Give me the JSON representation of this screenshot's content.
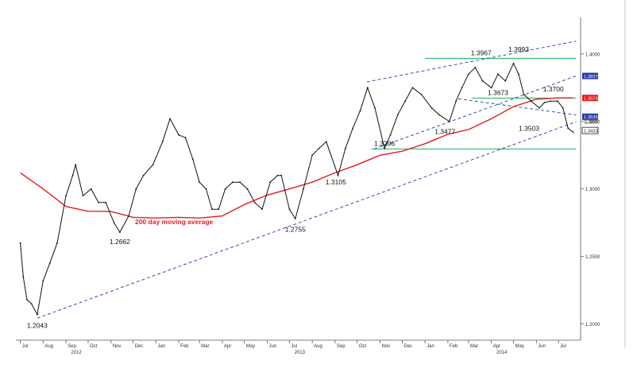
{
  "chart_data": {
    "type": "line",
    "series": [
      {
        "kind": "price",
        "x": [
          "2012-07-01",
          "2012-07-05",
          "2012-07-10",
          "2012-07-16",
          "2012-07-24",
          "2012-08-01",
          "2012-08-10",
          "2012-08-20",
          "2012-09-01",
          "2012-09-10",
          "2012-09-14",
          "2012-09-24",
          "2012-10-05",
          "2012-10-15",
          "2012-10-25",
          "2012-11-05",
          "2012-11-13",
          "2012-11-25",
          "2012-12-05",
          "2012-12-15",
          "2012-12-28",
          "2013-01-10",
          "2013-01-20",
          "2013-02-01",
          "2013-02-10",
          "2013-02-20",
          "2013-03-01",
          "2013-03-10",
          "2013-03-18",
          "2013-03-27",
          "2013-04-05",
          "2013-04-15",
          "2013-04-25",
          "2013-05-05",
          "2013-05-15",
          "2013-05-25",
          "2013-06-05",
          "2013-06-15",
          "2013-06-20",
          "2013-07-01",
          "2013-07-09",
          "2013-07-20",
          "2013-08-01",
          "2013-08-10",
          "2013-08-20",
          "2013-09-05",
          "2013-09-15",
          "2013-09-25",
          "2013-10-05",
          "2013-10-15",
          "2013-10-25",
          "2013-11-07",
          "2013-11-15",
          "2013-11-25",
          "2013-12-05",
          "2013-12-15",
          "2013-12-27",
          "2014-01-10",
          "2014-01-20",
          "2014-02-03",
          "2014-02-12",
          "2014-02-20",
          "2014-03-01",
          "2014-03-10",
          "2014-03-20",
          "2014-04-01",
          "2014-04-10",
          "2014-04-20",
          "2014-05-01",
          "2014-05-08",
          "2014-05-15",
          "2014-05-25",
          "2014-06-05",
          "2014-06-12",
          "2014-06-20",
          "2014-06-30",
          "2014-07-07",
          "2014-07-14",
          "2014-07-21"
        ],
        "y": [
          1.26,
          1.235,
          1.218,
          1.215,
          1.207,
          1.232,
          1.245,
          1.26,
          1.295,
          1.31,
          1.318,
          1.295,
          1.3,
          1.29,
          1.29,
          1.275,
          1.268,
          1.28,
          1.3,
          1.31,
          1.318,
          1.335,
          1.352,
          1.34,
          1.338,
          1.322,
          1.305,
          1.3,
          1.285,
          1.285,
          1.3,
          1.305,
          1.305,
          1.3,
          1.29,
          1.285,
          1.305,
          1.31,
          1.31,
          1.285,
          1.278,
          1.3,
          1.325,
          1.33,
          1.335,
          1.31,
          1.33,
          1.345,
          1.358,
          1.375,
          1.36,
          1.33,
          1.34,
          1.355,
          1.365,
          1.375,
          1.37,
          1.36,
          1.355,
          1.35,
          1.365,
          1.375,
          1.385,
          1.39,
          1.38,
          1.375,
          1.385,
          1.38,
          1.393,
          1.385,
          1.37,
          1.365,
          1.36,
          1.364,
          1.365,
          1.365,
          1.36,
          1.345,
          1.342
        ]
      },
      {
        "name": "200 day moving average",
        "kind": "moving_average",
        "color": "#e31b23",
        "x": [
          "2012-07-01",
          "2012-08-01",
          "2012-09-01",
          "2012-10-01",
          "2012-11-01",
          "2012-12-01",
          "2013-01-01",
          "2013-02-01",
          "2013-03-01",
          "2013-04-01",
          "2013-05-01",
          "2013-06-01",
          "2013-07-01",
          "2013-08-01",
          "2013-09-01",
          "2013-10-01",
          "2013-11-01",
          "2013-12-01",
          "2014-01-01",
          "2014-02-01",
          "2014-03-01",
          "2014-04-01",
          "2014-05-01",
          "2014-06-01",
          "2014-07-01",
          "2014-07-21"
        ],
        "y": [
          1.312,
          1.3,
          1.287,
          1.2835,
          1.2833,
          1.279,
          1.2785,
          1.279,
          1.2785,
          1.28,
          1.2885,
          1.2955,
          1.3,
          1.305,
          1.312,
          1.318,
          1.325,
          1.328,
          1.3335,
          1.3405,
          1.344,
          1.352,
          1.361,
          1.3665,
          1.3674,
          1.3674
        ]
      }
    ],
    "trendlines": [
      {
        "style": "dashed",
        "color": "#2a3aa8",
        "from": {
          "x": "2012-07-24",
          "y": 1.2043
        },
        "to": {
          "x": "2014-07-25",
          "y": 1.3498
        }
      },
      {
        "style": "dashed",
        "color": "#2a3aa8",
        "from": {
          "x": "2013-10-24",
          "y": 1.3296
        },
        "to": {
          "x": "2014-07-25",
          "y": 1.3837
        }
      },
      {
        "style": "dashed",
        "color": "#2a3aa8",
        "from": {
          "x": "2013-10-14",
          "y": 1.3793
        },
        "to": {
          "x": "2014-07-25",
          "y": 1.4095
        }
      },
      {
        "style": "dashed",
        "color": "#2a3aa8",
        "from": {
          "x": "2014-02-15",
          "y": 1.3668
        },
        "to": {
          "x": "2014-07-25",
          "y": 1.3548
        }
      }
    ],
    "hlines": [
      {
        "y": 1.3967,
        "from": "2014-01-01",
        "to": "2014-07-25",
        "color": "#2fbf71"
      },
      {
        "y": 1.3673,
        "from": "2014-03-05",
        "to": "2014-07-25",
        "color": "#2fbf71"
      },
      {
        "y": 1.3296,
        "from": "2013-10-20",
        "to": "2014-07-25",
        "color": "#2fbf71"
      }
    ],
    "annotations": [
      {
        "text": "1.2043",
        "x": "2012-07-24",
        "y": 1.2043
      },
      {
        "text": "1.2662",
        "x": "2012-11-13",
        "y": 1.2662
      },
      {
        "text": "1.2755",
        "x": "2013-07-09",
        "y": 1.2755
      },
      {
        "text": "1.3105",
        "x": "2013-09-02",
        "y": 1.3105
      },
      {
        "text": "1.3296",
        "x": "2013-11-07",
        "y": 1.3296
      },
      {
        "text": "1.3477",
        "x": "2014-01-28",
        "y": 1.3477
      },
      {
        "text": "1.3967",
        "x": "2014-03-18",
        "y": 1.3967
      },
      {
        "text": "1.3993",
        "x": "2014-05-08",
        "y": 1.3993
      },
      {
        "text": "1.3673",
        "x": "2014-04-10",
        "y": 1.3673
      },
      {
        "text": "1.3503",
        "x": "2014-05-22",
        "y": 1.3503
      },
      {
        "text": "1.3700",
        "x": "2014-06-24",
        "y": 1.37
      }
    ],
    "series_label": {
      "text": "200 day moving average",
      "color": "#e31b23"
    },
    "price_flags": [
      {
        "text": "1.3837",
        "y": 1.3837,
        "style": "filled",
        "color": "#2a3aa8"
      },
      {
        "text": "1.3674",
        "y": 1.3674,
        "style": "filled",
        "color": "#e31b23"
      },
      {
        "text": "1.3535",
        "y": 1.3535,
        "style": "filled",
        "color": "#2a3aa8"
      },
      {
        "text": "1.3500",
        "y": 1.35,
        "style": "plain",
        "color": "#222222"
      },
      {
        "text": "1.3433",
        "y": 1.3433,
        "style": "outlined",
        "color": "#222222"
      }
    ],
    "yaxis": {
      "ticks": [
        "1.4000",
        "1.3500",
        "1.3000",
        "1.2500",
        "1.2000"
      ],
      "ylim": [
        1.188,
        1.427
      ],
      "position": "right"
    },
    "xaxis": {
      "ticks": [
        {
          "label": "Jul",
          "x": "2012-07-01"
        },
        {
          "label": "Aug",
          "x": "2012-08-01"
        },
        {
          "label": "Sep",
          "x": "2012-09-01"
        },
        {
          "label": "Oct",
          "x": "2012-10-01"
        },
        {
          "label": "Nov",
          "x": "2012-11-01"
        },
        {
          "label": "Dec",
          "x": "2012-12-01"
        },
        {
          "label": "Jan",
          "x": "2013-01-01"
        },
        {
          "label": "Feb",
          "x": "2013-02-01"
        },
        {
          "label": "Mar",
          "x": "2013-03-01"
        },
        {
          "label": "Apr",
          "x": "2013-04-01"
        },
        {
          "label": "May",
          "x": "2013-05-01"
        },
        {
          "label": "Jun",
          "x": "2013-06-01"
        },
        {
          "label": "Jul",
          "x": "2013-07-01"
        },
        {
          "label": "Aug",
          "x": "2013-08-01"
        },
        {
          "label": "Sep",
          "x": "2013-09-01"
        },
        {
          "label": "Oct",
          "x": "2013-10-01"
        },
        {
          "label": "Nov",
          "x": "2013-11-01"
        },
        {
          "label": "Dec",
          "x": "2013-12-01"
        },
        {
          "label": "Jan",
          "x": "2014-01-01"
        },
        {
          "label": "Feb",
          "x": "2014-02-01"
        },
        {
          "label": "Mar",
          "x": "2014-03-01"
        },
        {
          "label": "Apr",
          "x": "2014-04-01"
        },
        {
          "label": "May",
          "x": "2014-05-01"
        },
        {
          "label": "Jun",
          "x": "2014-06-01"
        },
        {
          "label": "Jul",
          "x": "2014-07-01"
        }
      ],
      "year_labels": [
        {
          "label": "2012",
          "x": "2012-09-15"
        },
        {
          "label": "2013",
          "x": "2013-07-15"
        },
        {
          "label": "2014",
          "x": "2014-04-15"
        }
      ],
      "xlim": [
        "2012-06-25",
        "2014-07-31"
      ]
    },
    "grid": false,
    "legend": "none",
    "title": "",
    "xlabel": "",
    "ylabel": ""
  }
}
